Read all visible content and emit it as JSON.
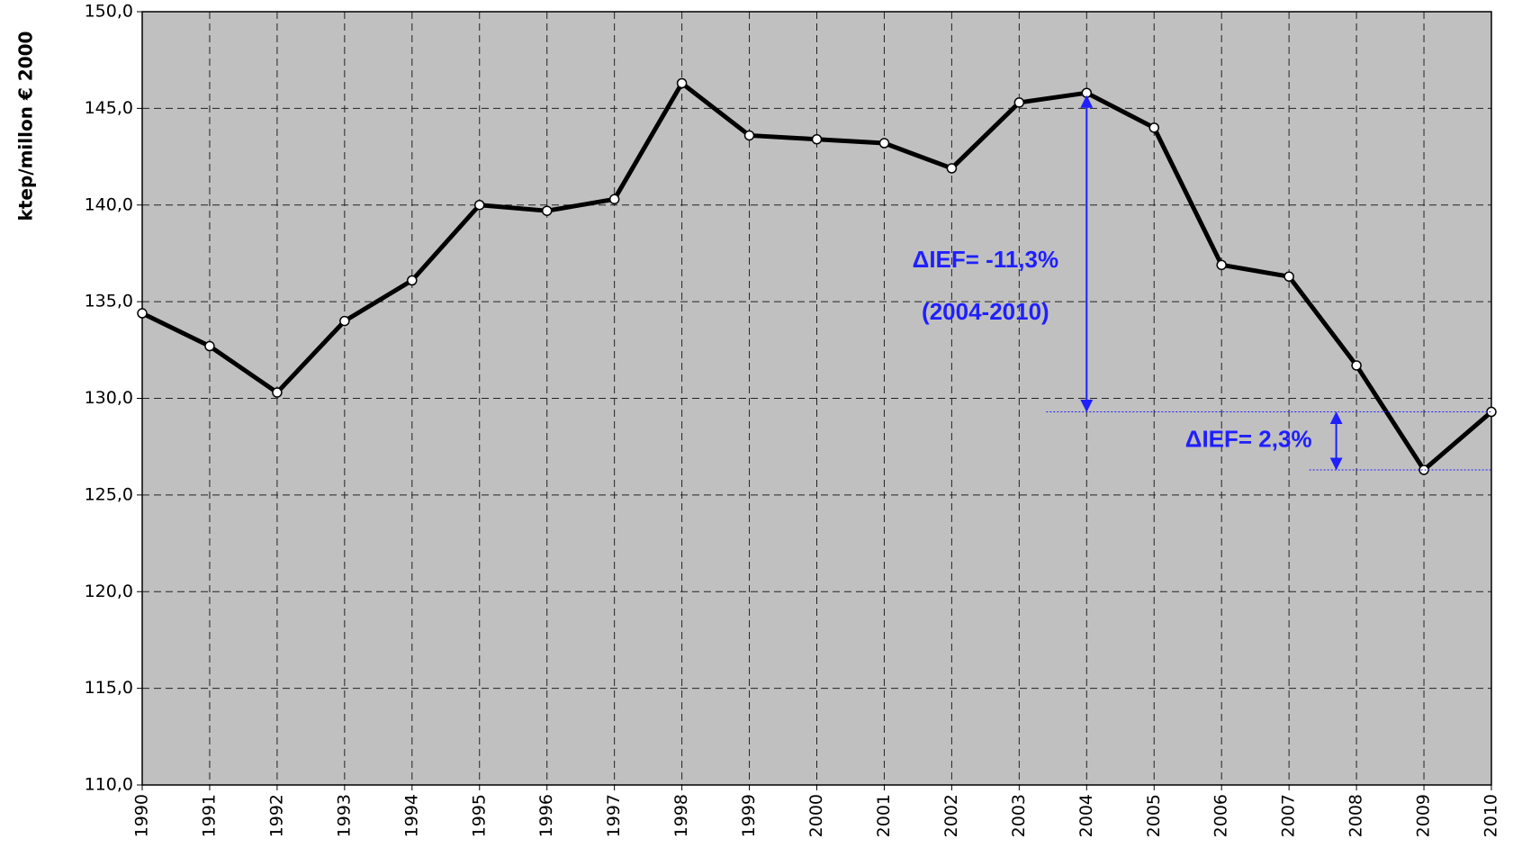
{
  "chart_data": {
    "type": "line",
    "y_label": "ktep/millon € 2000",
    "categories": [
      "1990",
      "1991",
      "1992",
      "1993",
      "1994",
      "1995",
      "1996",
      "1997",
      "1998",
      "1999",
      "2000",
      "2001",
      "2002",
      "2003",
      "2004",
      "2005",
      "2006",
      "2007",
      "2008",
      "2009",
      "2010"
    ],
    "values": [
      134.4,
      132.7,
      130.3,
      134.0,
      136.1,
      140.0,
      139.7,
      140.3,
      146.3,
      143.6,
      143.4,
      143.2,
      141.9,
      145.3,
      145.8,
      144.0,
      136.9,
      136.3,
      131.7,
      126.3,
      129.3
    ],
    "color": "#000000",
    "ylim": [
      110,
      150
    ],
    "yticks": [
      {
        "value": 110,
        "label": "110,0"
      },
      {
        "value": 115,
        "label": "115,0"
      },
      {
        "value": 120,
        "label": "120,0"
      },
      {
        "value": 125,
        "label": "125,0"
      },
      {
        "value": 130,
        "label": "130,0"
      },
      {
        "value": 135,
        "label": "135,0"
      },
      {
        "value": 140,
        "label": "140,0"
      },
      {
        "value": 145,
        "label": "145,0"
      },
      {
        "value": 150,
        "label": "150,0"
      }
    ],
    "grid": true,
    "annotations": [
      "ΔIEF= -11,3%",
      "(2004-2010)",
      "ΔIEF= 2,3%"
    ]
  }
}
